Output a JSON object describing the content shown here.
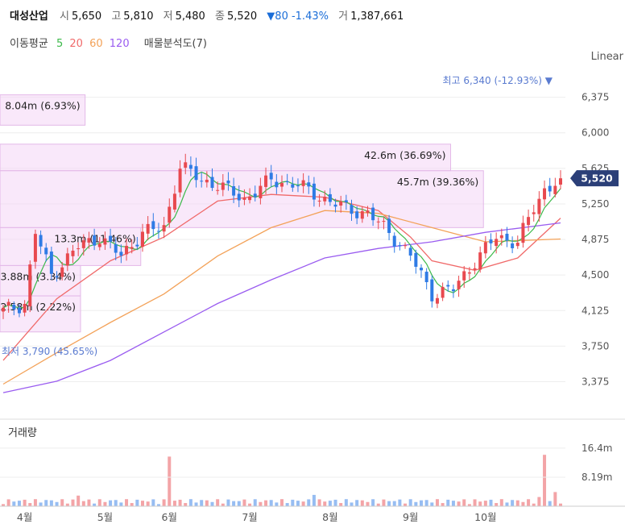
{
  "header": {
    "name": "대성산업",
    "open_label": "시",
    "open": "5,650",
    "high_label": "고",
    "high": "5,810",
    "low_label": "저",
    "low": "5,480",
    "close_label": "종",
    "close": "5,520",
    "change": "▼80 -1.43%",
    "volume_label": "거",
    "volume": "1,387,661"
  },
  "ma_legend": {
    "title": "이동평균",
    "p5": "5",
    "p20": "20",
    "p60": "60",
    "p120": "120",
    "profile": "매물분석도(7)"
  },
  "scale_label": "Linear",
  "volume_title": "거래량",
  "colors": {
    "up": "#e8494f",
    "down": "#2f7be5",
    "ma5": "#3cb94a",
    "ma20": "#f06a6a",
    "ma60": "#f3a259",
    "ma120": "#9a5cf0",
    "profile": "#f4d6f6"
  },
  "chart_data": {
    "type": "candlestick",
    "y_axis_ticks": [
      "6,375",
      "6,000",
      "5,625",
      "5,250",
      "4,875",
      "4,500",
      "4,125",
      "3,750",
      "3,375"
    ],
    "y_range": [
      3150,
      6550
    ],
    "x_axis_ticks": [
      "4월",
      "5월",
      "6월",
      "7월",
      "8월",
      "9월",
      "10월"
    ],
    "volume_ticks": [
      "16.4m",
      "8.19m"
    ],
    "volume_max": 20000000,
    "current_price": "5,520",
    "high_annotation": "최고 6,340 (-12.93%)",
    "low_annotation": "최저 3,790 (45.65%)",
    "volume_profile": [
      {
        "label": "8.04m (6.93%)",
        "from": 6080,
        "to": 6400
      },
      {
        "label": "42.6m (36.69%)",
        "from": 5600,
        "to": 5880
      },
      {
        "label": "45.7m (39.36%)",
        "from": 5000,
        "to": 5600
      },
      {
        "label": "13.3m (11.46%)",
        "from": 4600,
        "to": 5000
      },
      {
        "label": "3.88m (3.34%)",
        "from": 4280,
        "to": 4600
      },
      {
        "label": "2.58m (2.22%)",
        "from": 3900,
        "to": 4280
      }
    ],
    "month_keypoints": [
      {
        "x": 0,
        "p": 4120
      },
      {
        "x": 4,
        "p": 4200
      },
      {
        "x": 6,
        "p": 4950
      },
      {
        "x": 9,
        "p": 4500
      },
      {
        "x": 14,
        "p": 4800
      },
      {
        "x": 18,
        "p": 4900
      },
      {
        "x": 22,
        "p": 4700
      },
      {
        "x": 26,
        "p": 4950
      },
      {
        "x": 30,
        "p": 5000
      },
      {
        "x": 33,
        "p": 5650
      },
      {
        "x": 37,
        "p": 5500
      },
      {
        "x": 40,
        "p": 5450
      },
      {
        "x": 45,
        "p": 5300
      },
      {
        "x": 50,
        "p": 5500
      },
      {
        "x": 55,
        "p": 5450
      },
      {
        "x": 60,
        "p": 5300
      },
      {
        "x": 64,
        "p": 5200
      },
      {
        "x": 68,
        "p": 5150
      },
      {
        "x": 72,
        "p": 4950
      },
      {
        "x": 76,
        "p": 4700
      },
      {
        "x": 80,
        "p": 4300
      },
      {
        "x": 84,
        "p": 4350
      },
      {
        "x": 88,
        "p": 4650
      },
      {
        "x": 92,
        "p": 4900
      },
      {
        "x": 96,
        "p": 4850
      },
      {
        "x": 99,
        "p": 5200
      },
      {
        "x": 101,
        "p": 5400
      },
      {
        "x": 104,
        "p": 5520
      }
    ],
    "ma_series": [
      {
        "name": "20",
        "points": [
          [
            0,
            3600
          ],
          [
            10,
            4250
          ],
          [
            20,
            4650
          ],
          [
            30,
            4900
          ],
          [
            40,
            5280
          ],
          [
            50,
            5350
          ],
          [
            60,
            5320
          ],
          [
            70,
            5180
          ],
          [
            76,
            4900
          ],
          [
            80,
            4650
          ],
          [
            88,
            4550
          ],
          [
            96,
            4680
          ],
          [
            104,
            5100
          ]
        ]
      },
      {
        "name": "60",
        "points": [
          [
            0,
            3350
          ],
          [
            10,
            3680
          ],
          [
            20,
            4000
          ],
          [
            30,
            4300
          ],
          [
            40,
            4700
          ],
          [
            50,
            5000
          ],
          [
            60,
            5180
          ],
          [
            70,
            5150
          ],
          [
            80,
            5000
          ],
          [
            90,
            4850
          ],
          [
            104,
            4880
          ]
        ]
      },
      {
        "name": "120",
        "points": [
          [
            0,
            3260
          ],
          [
            10,
            3380
          ],
          [
            20,
            3600
          ],
          [
            30,
            3900
          ],
          [
            40,
            4200
          ],
          [
            50,
            4450
          ],
          [
            60,
            4680
          ],
          [
            70,
            4780
          ],
          [
            80,
            4850
          ],
          [
            90,
            4950
          ],
          [
            104,
            5050
          ]
        ]
      }
    ]
  }
}
